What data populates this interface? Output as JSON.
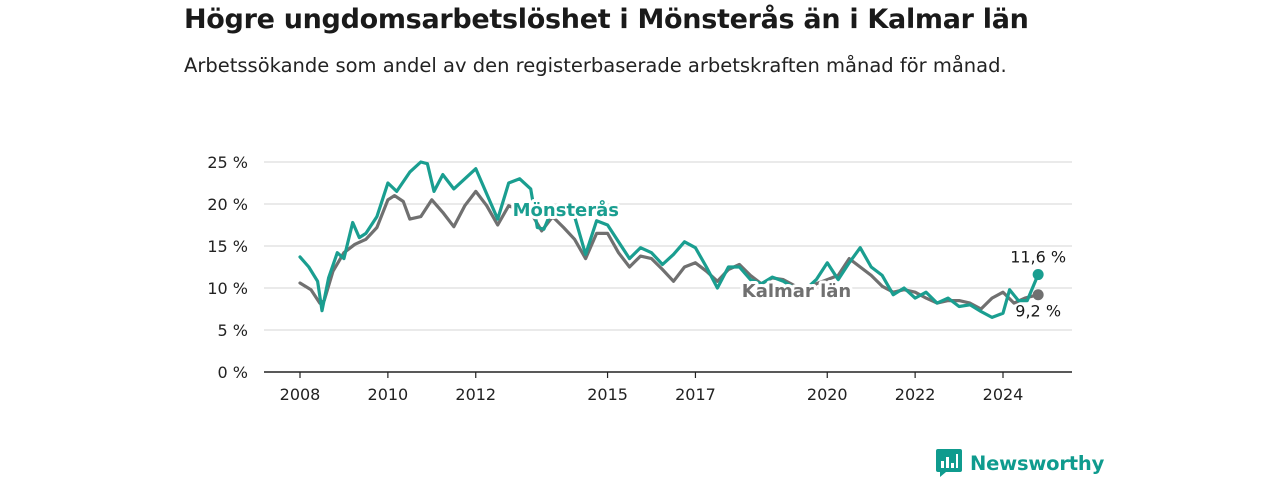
{
  "title": "Högre ungdomsarbetslöshet i Mönsterås än i Kalmar län",
  "subtitle": "Arbetssökande som andel av den registerbaserade arbetskraften månad för månad.",
  "brand": {
    "name": "Newsworthy"
  },
  "colors": {
    "monsteras": "#1a9e90",
    "kalmar": "#707070",
    "grid": "#d6d6d6",
    "axis": "#222222",
    "brand": "#0f9b8e"
  },
  "chart_data": {
    "type": "line",
    "ylim": [
      0,
      25
    ],
    "xlim": [
      2008,
      2025.8
    ],
    "yticks": [
      0,
      5,
      10,
      15,
      20,
      25
    ],
    "ytick_labels": [
      "0 %",
      "5 %",
      "10 %",
      "15 %",
      "20 %",
      "25 %"
    ],
    "xticks": [
      2008,
      2010,
      2012,
      2015,
      2017,
      2020,
      2022,
      2024
    ],
    "xtick_labels": [
      "2008",
      "2010",
      "2012",
      "2015",
      "2017",
      "2020",
      "2022",
      "2024"
    ],
    "grid": true,
    "series": [
      {
        "name": "Kalmar län",
        "color": "#707070",
        "end_label": "9,2 %",
        "points": [
          [
            2008.0,
            10.6
          ],
          [
            2008.25,
            9.8
          ],
          [
            2008.45,
            8.2
          ],
          [
            2008.55,
            8.5
          ],
          [
            2008.75,
            12.0
          ],
          [
            2009.0,
            14.2
          ],
          [
            2009.25,
            15.2
          ],
          [
            2009.5,
            15.8
          ],
          [
            2009.75,
            17.2
          ],
          [
            2010.0,
            20.5
          ],
          [
            2010.15,
            21.0
          ],
          [
            2010.35,
            20.3
          ],
          [
            2010.5,
            18.2
          ],
          [
            2010.75,
            18.5
          ],
          [
            2011.0,
            20.5
          ],
          [
            2011.25,
            19.0
          ],
          [
            2011.5,
            17.3
          ],
          [
            2011.75,
            19.8
          ],
          [
            2012.0,
            21.5
          ],
          [
            2012.25,
            19.8
          ],
          [
            2012.5,
            17.5
          ],
          [
            2012.75,
            19.8
          ],
          [
            2013.0,
            19.2
          ],
          [
            2013.25,
            19.0
          ],
          [
            2013.5,
            16.8
          ],
          [
            2013.75,
            18.5
          ],
          [
            2014.0,
            17.2
          ],
          [
            2014.25,
            15.8
          ],
          [
            2014.5,
            13.5
          ],
          [
            2014.75,
            16.5
          ],
          [
            2015.0,
            16.5
          ],
          [
            2015.25,
            14.2
          ],
          [
            2015.5,
            12.5
          ],
          [
            2015.75,
            13.8
          ],
          [
            2016.0,
            13.5
          ],
          [
            2016.25,
            12.2
          ],
          [
            2016.5,
            10.8
          ],
          [
            2016.75,
            12.5
          ],
          [
            2017.0,
            13.0
          ],
          [
            2017.25,
            12.0
          ],
          [
            2017.5,
            10.8
          ],
          [
            2017.75,
            12.2
          ],
          [
            2018.0,
            12.8
          ],
          [
            2018.25,
            11.5
          ],
          [
            2018.5,
            10.5
          ],
          [
            2018.75,
            11.2
          ],
          [
            2019.0,
            11.0
          ],
          [
            2019.25,
            10.3
          ],
          [
            2019.5,
            9.2
          ],
          [
            2019.75,
            10.5
          ],
          [
            2020.0,
            11.0
          ],
          [
            2020.25,
            11.5
          ],
          [
            2020.5,
            13.5
          ],
          [
            2020.75,
            12.5
          ],
          [
            2021.0,
            11.5
          ],
          [
            2021.25,
            10.2
          ],
          [
            2021.5,
            9.5
          ],
          [
            2021.75,
            9.8
          ],
          [
            2022.0,
            9.5
          ],
          [
            2022.25,
            8.8
          ],
          [
            2022.5,
            8.2
          ],
          [
            2022.75,
            8.5
          ],
          [
            2023.0,
            8.5
          ],
          [
            2023.25,
            8.2
          ],
          [
            2023.5,
            7.5
          ],
          [
            2023.75,
            8.8
          ],
          [
            2024.0,
            9.5
          ],
          [
            2024.25,
            8.2
          ],
          [
            2024.5,
            8.8
          ],
          [
            2024.8,
            9.2
          ]
        ]
      },
      {
        "name": "Mönsterås",
        "color": "#1a9e90",
        "end_label": "11,6 %",
        "points": [
          [
            2008.0,
            13.7
          ],
          [
            2008.2,
            12.5
          ],
          [
            2008.4,
            10.8
          ],
          [
            2008.5,
            7.3
          ],
          [
            2008.65,
            11.2
          ],
          [
            2008.85,
            14.2
          ],
          [
            2009.0,
            13.5
          ],
          [
            2009.2,
            17.8
          ],
          [
            2009.35,
            16.0
          ],
          [
            2009.5,
            16.5
          ],
          [
            2009.75,
            18.5
          ],
          [
            2010.0,
            22.5
          ],
          [
            2010.2,
            21.5
          ],
          [
            2010.5,
            23.8
          ],
          [
            2010.75,
            25.0
          ],
          [
            2010.9,
            24.8
          ],
          [
            2011.05,
            21.5
          ],
          [
            2011.25,
            23.5
          ],
          [
            2011.5,
            21.8
          ],
          [
            2011.75,
            23.0
          ],
          [
            2012.0,
            24.2
          ],
          [
            2012.25,
            21.2
          ],
          [
            2012.5,
            18.2
          ],
          [
            2012.75,
            22.5
          ],
          [
            2013.0,
            23.0
          ],
          [
            2013.25,
            21.8
          ],
          [
            2013.4,
            17.2
          ],
          [
            2013.55,
            17.0
          ],
          [
            2013.75,
            19.5
          ],
          [
            2014.0,
            19.2
          ],
          [
            2014.25,
            18.5
          ],
          [
            2014.5,
            14.0
          ],
          [
            2014.75,
            18.0
          ],
          [
            2015.0,
            17.5
          ],
          [
            2015.25,
            15.5
          ],
          [
            2015.5,
            13.5
          ],
          [
            2015.75,
            14.8
          ],
          [
            2016.0,
            14.2
          ],
          [
            2016.25,
            12.8
          ],
          [
            2016.5,
            14.0
          ],
          [
            2016.75,
            15.5
          ],
          [
            2017.0,
            14.8
          ],
          [
            2017.25,
            12.5
          ],
          [
            2017.5,
            10.0
          ],
          [
            2017.75,
            12.5
          ],
          [
            2018.0,
            12.5
          ],
          [
            2018.25,
            11.0
          ],
          [
            2018.5,
            10.5
          ],
          [
            2018.75,
            11.3
          ],
          [
            2019.0,
            10.8
          ],
          [
            2019.25,
            10.0
          ],
          [
            2019.5,
            9.8
          ],
          [
            2019.75,
            11.0
          ],
          [
            2020.0,
            13.0
          ],
          [
            2020.25,
            11.0
          ],
          [
            2020.5,
            13.0
          ],
          [
            2020.75,
            14.8
          ],
          [
            2021.0,
            12.5
          ],
          [
            2021.25,
            11.5
          ],
          [
            2021.5,
            9.2
          ],
          [
            2021.75,
            10.0
          ],
          [
            2022.0,
            8.8
          ],
          [
            2022.25,
            9.5
          ],
          [
            2022.5,
            8.2
          ],
          [
            2022.75,
            8.8
          ],
          [
            2023.0,
            7.8
          ],
          [
            2023.25,
            8.0
          ],
          [
            2023.5,
            7.2
          ],
          [
            2023.75,
            6.5
          ],
          [
            2024.0,
            7.0
          ],
          [
            2024.15,
            9.8
          ],
          [
            2024.35,
            8.5
          ],
          [
            2024.55,
            8.5
          ],
          [
            2024.8,
            11.6
          ]
        ]
      }
    ],
    "series_labels": [
      {
        "series": "Mönsterås",
        "text": "Mönsterås",
        "at": [
          2014.05,
          18.6
        ]
      },
      {
        "series": "Kalmar län",
        "text": "Kalmar län",
        "at": [
          2019.3,
          8.9
        ]
      }
    ]
  }
}
